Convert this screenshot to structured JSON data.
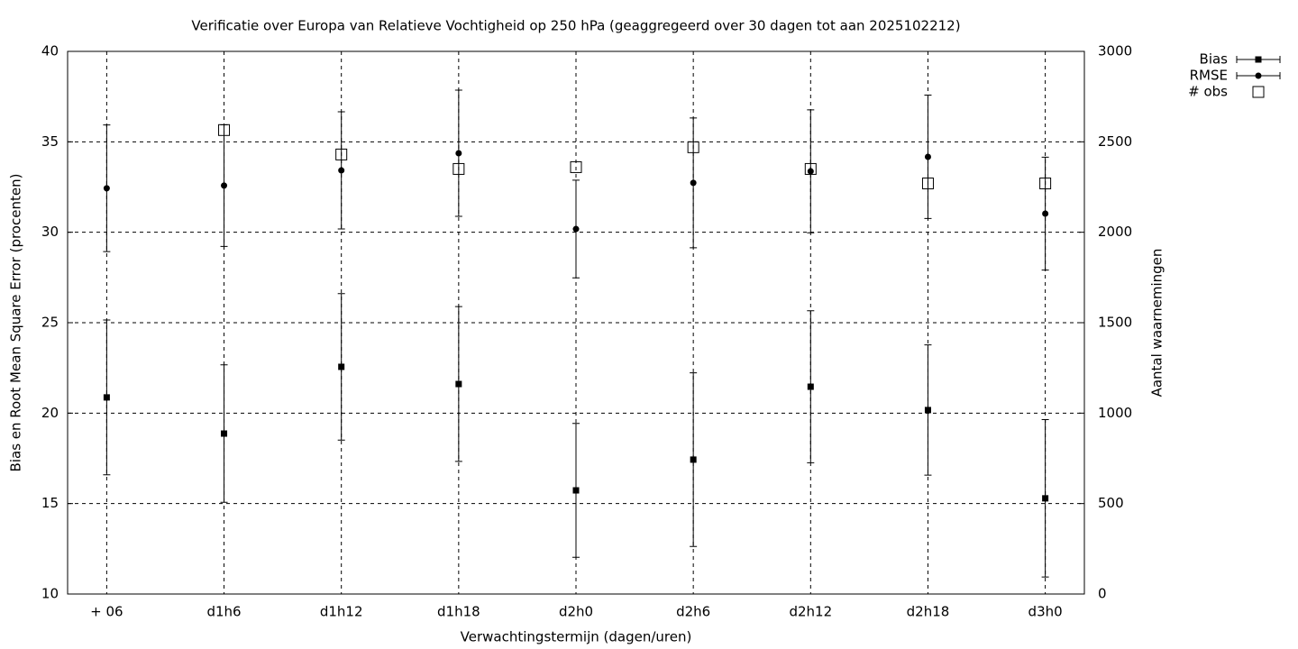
{
  "chart_data": {
    "type": "errorbar",
    "title": "Verificatie over Europa van Relatieve Vochtigheid op 250 hPa (geaggregeerd over 30 dagen tot aan 2025102212)",
    "xlabel": "Verwachtingstermijn (dagen/uren)",
    "ylabel": "Bias en Root Mean Square Error (procenten)",
    "y2label": "Aantal waarnemingen",
    "categories": [
      "+ 06",
      "d1h6",
      "d1h12",
      "d1h18",
      "d2h0",
      "d2h6",
      "d2h12",
      "d2h18",
      "d3h0"
    ],
    "ylim": [
      10,
      40
    ],
    "yticks": [
      10,
      15,
      20,
      25,
      30,
      35,
      40
    ],
    "y2lim": [
      0,
      3000
    ],
    "y2ticks": [
      0,
      500,
      1000,
      1500,
      2000,
      2500,
      3000
    ],
    "grid": true,
    "legend": "outside-top-right",
    "series": [
      {
        "name": "Bias",
        "color": "#000000",
        "marker": "square",
        "values": [
          20.87,
          18.87,
          22.56,
          21.61,
          15.73,
          17.43,
          21.46,
          20.17,
          15.29
        ],
        "errors": [
          4.28,
          3.8,
          4.05,
          4.28,
          3.7,
          4.8,
          4.2,
          3.6,
          4.35
        ]
      },
      {
        "name": "RMSE",
        "color": "#000000",
        "marker": "circle",
        "values": [
          32.43,
          32.58,
          33.42,
          34.37,
          30.18,
          32.73,
          33.37,
          34.17,
          31.03
        ],
        "errors": [
          3.5,
          3.36,
          3.24,
          3.49,
          2.7,
          3.59,
          3.4,
          3.41,
          3.12
        ]
      },
      {
        "name": "# obs",
        "color": "#000000",
        "marker": "open-square",
        "axis": "y2",
        "values": [
          null,
          2565,
          2430,
          2350,
          2360,
          2470,
          2350,
          2270,
          2270
        ]
      }
    ]
  }
}
